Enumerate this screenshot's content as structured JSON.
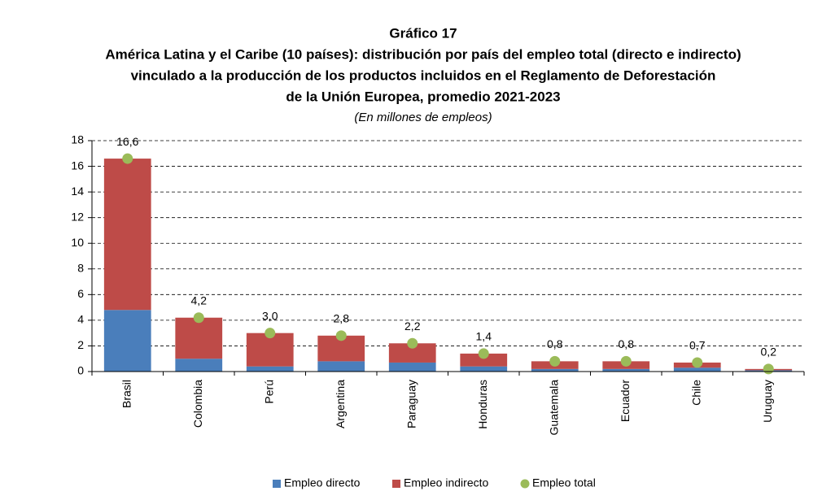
{
  "chart_data": {
    "type": "bar",
    "stacked": true,
    "title": "Gráfico 17",
    "subtitle": [
      "América Latina y el Caribe (10 países): distribución por país del empleo total (directo e indirecto)",
      "vinculado a la producción de los productos incluidos en el Reglamento de Deforestación",
      "de la Unión Europea, promedio 2021-2023"
    ],
    "note": "(En millones de empleos)",
    "categories": [
      "Brasil",
      "Colombia",
      "Perú",
      "Argentina",
      "Paraguay",
      "Honduras",
      "Guatemala",
      "Ecuador",
      "Chile",
      "Uruguay"
    ],
    "series": [
      {
        "name": "Empleo directo",
        "type": "bar",
        "color": "#4a7ebb",
        "values": [
          4.8,
          1.0,
          0.4,
          0.8,
          0.7,
          0.4,
          0.2,
          0.2,
          0.3,
          0.1
        ]
      },
      {
        "name": "Empleo indirecto",
        "type": "bar",
        "color": "#be4b48",
        "values": [
          11.8,
          3.2,
          2.6,
          2.0,
          1.5,
          1.0,
          0.6,
          0.6,
          0.4,
          0.1
        ]
      },
      {
        "name": "Empleo total",
        "type": "scatter",
        "color": "#9bbb59",
        "values": [
          16.6,
          4.2,
          3.0,
          2.8,
          2.2,
          1.4,
          0.8,
          0.8,
          0.7,
          0.2
        ],
        "value_labels": [
          "16,6",
          "4,2",
          "3,0",
          "2,8",
          "2,2",
          "1,4",
          "0,8",
          "0,8",
          "0,7",
          "0,2"
        ]
      }
    ],
    "ylim": [
      0,
      18
    ],
    "yticks": [
      0,
      2,
      4,
      6,
      8,
      10,
      12,
      14,
      16,
      18
    ],
    "grid": true,
    "legend": "bottom"
  }
}
